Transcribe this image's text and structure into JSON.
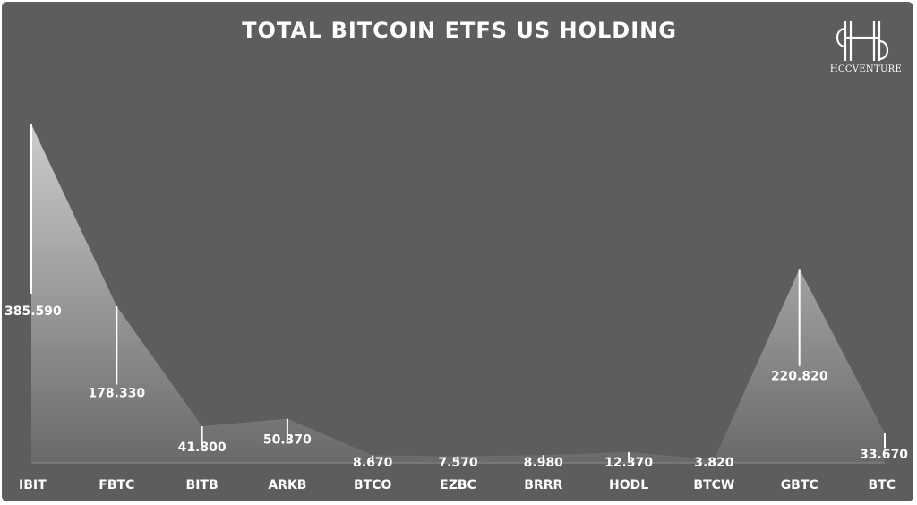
{
  "chart_data": {
    "type": "area",
    "title": "TOTAL BITCOIN ETFS US HOLDING",
    "categories": [
      "IBIT",
      "FBTC",
      "BITB",
      "ARKB",
      "BTCO",
      "EZBC",
      "BRRR",
      "HODL",
      "BTCW",
      "GBTC",
      "BTC"
    ],
    "values": [
      385.59,
      178.33,
      41.8,
      50.37,
      8.67,
      7.57,
      8.98,
      12.37,
      3.82,
      220.82,
      33.67
    ],
    "value_labels": [
      "385.590",
      "178.330",
      "41.800",
      "50.370",
      "8.670",
      "7.570",
      "8.980",
      "12.370",
      "3.820",
      "220.820",
      "33.670"
    ],
    "xlabel": "",
    "ylabel": "",
    "ylim": [
      0,
      400
    ],
    "grid": false,
    "legend": "none",
    "colors": {
      "background": "#5d5d5d",
      "area_top": "#d2d2d2",
      "area_bottom": "#6a6a6a",
      "text": "#ffffff"
    }
  },
  "brand": {
    "logo_text": "HCCVENTURE",
    "logo_icon": "hccventure-monogram-icon"
  }
}
